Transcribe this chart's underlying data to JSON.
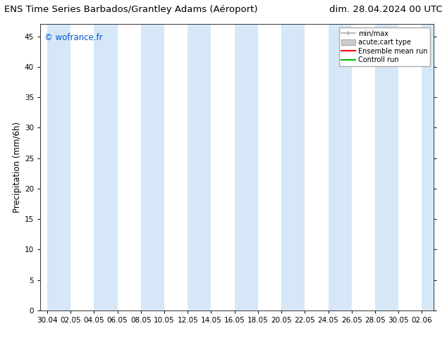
{
  "title_left": "ENS Time Series Barbados/Grantley Adams (Aéroport)",
  "title_right": "dim. 28.04.2024 00 UTC",
  "ylabel": "Precipitation (mm/6h)",
  "watermark": "© wofrance.fr",
  "watermark_color": "#0055cc",
  "background_color": "#ffffff",
  "plot_bg_color": "#ffffff",
  "ylim": [
    0,
    47
  ],
  "yticks": [
    0,
    5,
    10,
    15,
    20,
    25,
    30,
    35,
    40,
    45
  ],
  "x_labels": [
    "30.04",
    "02.05",
    "04.05",
    "06.05",
    "08.05",
    "10.05",
    "12.05",
    "14.05",
    "16.05",
    "18.05",
    "20.05",
    "22.05",
    "24.05",
    "26.05",
    "28.05",
    "30.05",
    "02.06"
  ],
  "shade_band_color": "#d6e8f7",
  "shade_band_alpha": 1.0,
  "legend_labels": [
    "min/max",
    "acute;cart type",
    "Ensemble mean run",
    "Controll run"
  ],
  "legend_minmax_color": "#aaaaaa",
  "legend_acute_color": "#cccccc",
  "legend_ensemble_color": "#ff0000",
  "legend_control_color": "#00bb00",
  "title_fontsize": 9.5,
  "axis_fontsize": 8.5,
  "tick_fontsize": 7.5,
  "legend_fontsize": 7.0
}
